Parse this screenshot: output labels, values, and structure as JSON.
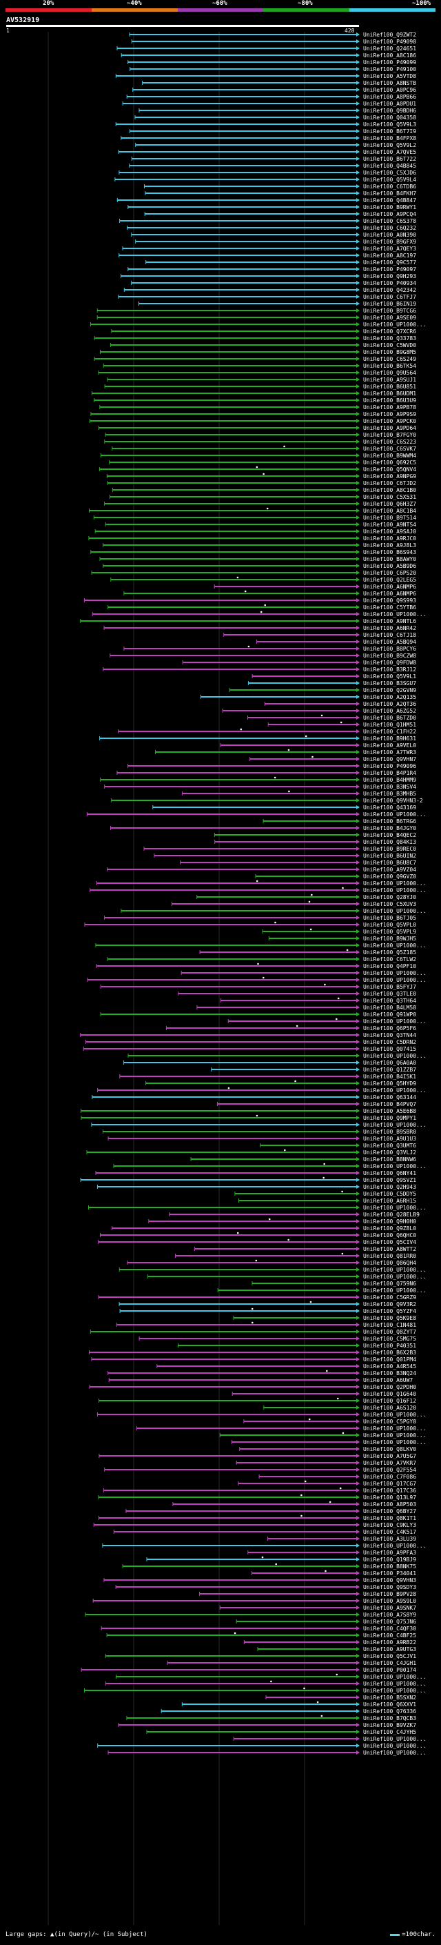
{
  "legend": {
    "labels": [
      "20%",
      "~40%",
      "~60%",
      "~80%",
      "~100%"
    ],
    "colors": [
      "#e0202a",
      "#e07a16",
      "#9a3bb0",
      "#20a320",
      "#3ec9e6"
    ]
  },
  "query": {
    "id": "AV532919",
    "start": "1",
    "end": "428"
  },
  "footer": {
    "left": "Large gaps: ▲(in Query)/~ (in Subject)",
    "right": "=100char."
  },
  "chart_data": {
    "type": "alignment-overview",
    "query_length": 428,
    "hits": [
      "UniRef100_Q9ZWT2",
      "UniRef100_P49098",
      "UniRef100_Q24651",
      "UniRef100_A8C186",
      "UniRef100_P49099",
      "UniRef100_P49100",
      "UniRef100_A5VTD8",
      "UniRef100_A8NSTB",
      "UniRef100_A0PC96",
      "UniRef100_A8PB66",
      "UniRef100_A0PDU1",
      "UniRef100_Q9BDH6",
      "UniRef100_Q04358",
      "UniRef100_Q5V9L3",
      "UniRef100_B6T7I9",
      "UniRef100_B4FPX8",
      "UniRef100_Q5V9L2",
      "UniRef100_A7QVE5",
      "UniRef100_B6T722",
      "UniRef100_Q4B845",
      "UniRef100_C5XJD6",
      "UniRef100_Q5V9L4",
      "UniRef100_C6TDB6",
      "UniRef100_B4FKH7",
      "UniRef100_Q4B847",
      "UniRef100_B9RWY1",
      "UniRef100_A9PCQ4",
      "UniRef100_C6S378",
      "UniRef100_C6Q232",
      "UniRef100_A0N390",
      "UniRef100_B9GFX9",
      "UniRef100_A7QEY3",
      "UniRef100_A8C197",
      "UniRef100_Q9C577",
      "UniRef100_P49097",
      "UniRef100_Q9H293",
      "UniRef100_P40934",
      "UniRef100_Q42342",
      "UniRef100_C6TFJ7",
      "UniRef100_B6IN19",
      "UniRef100_B9TCG6",
      "UniRef100_A9SE09",
      "UniRef100_UP1000...",
      "UniRef100_Q7XCR6",
      "UniRef100_Q33783",
      "UniRef100_C5WVD0",
      "UniRef100_B9G8M5",
      "UniRef100_C6S249",
      "UniRef100_B6TK54",
      "UniRef100_Q9U564",
      "UniRef100_A9SUJ1",
      "UniRef100_B6U851",
      "UniRef100_B6UDM1",
      "UniRef100_B6U3U9",
      "UniRef100_A9PB78",
      "UniRef100_A9P9S9",
      "UniRef100_A9PCK0",
      "UniRef100_A9PD64",
      "UniRef100_B7FGY0",
      "UniRef100_C6S223",
      "UniRef100_C6SVK7",
      "UniRef100_B9WWM4",
      "UniRef100_Q692C5",
      "UniRef100_Q5QNV4",
      "UniRef100_A9NPG9",
      "UniRef100_C6TJD2",
      "UniRef100_A8C1B0",
      "UniRef100_C5X531",
      "UniRef100_Q6H3Z7",
      "UniRef100_A8C1B4",
      "UniRef100_B9T514",
      "UniRef100_A9NTS4",
      "UniRef100_A9SAJ0",
      "UniRef100_A9RJC0",
      "UniRef100_A9J8L3",
      "UniRef100_B6S943",
      "UniRef100_B8AWY0",
      "UniRef100_A5B9D6",
      "UniRef100_C6PS20",
      "UniRef100_Q2LEG5",
      "UniRef100_A6NMP6",
      "UniRef100_A6NMP6",
      "UniRef100_Q9S993",
      "UniRef100_C5YTB6",
      "UniRef100_UP1000...",
      "UniRef100_A9NTL6",
      "UniRef100_A6NR42",
      "UniRef100_C6TJ18",
      "UniRef100_A5BQ94",
      "UniRef100_B8PCY6",
      "UniRef100_B9CZW8",
      "UniRef100_Q9FDW8",
      "UniRef100_B3RJ12",
      "UniRef100_Q5V9L1",
      "UniRef100_B3SGU7",
      "UniRef100_Q2GVN9",
      "UniRef100_A2Q135",
      "UniRef100_A2QT36",
      "UniRef100_A6ZG52",
      "UniRef100_B6TZD0",
      "UniRef100_Q1HM51",
      "UniRef100_C1FH22",
      "UniRef100_B9H631",
      "UniRef100_A9VEL0",
      "UniRef100_A7TWR3",
      "UniRef100_Q9VHN7",
      "UniRef100_P49096",
      "UniRef100_B4P1R4",
      "UniRef100_B4HMM9",
      "UniRef100_B3NSV4",
      "UniRef100_B3MHB5",
      "UniRef100_Q9VHN3-2",
      "UniRef100_Q43169",
      "UniRef100_UP1000...",
      "UniRef100_B6TRG6",
      "UniRef100_B4JGY0",
      "UniRef100_B4QEC2",
      "UniRef100_Q84KI3",
      "UniRef100_B9REC0",
      "UniRef100_B6UIN2",
      "UniRef100_B6U8C7",
      "UniRef100_A9VZ04",
      "UniRef100_Q9GVZ0",
      "UniRef100_UP1000...",
      "UniRef100_UP1000...",
      "UniRef100_Q28YJ0",
      "UniRef100_C5XUV3",
      "UniRef100_UP1000...",
      "UniRef100_B6TJ05",
      "UniRef100_Q5VPL0",
      "UniRef100_Q5VPL9",
      "UniRef100_B9WJH5",
      "UniRef100_UP1000...",
      "UniRef100_Q5Z185",
      "UniRef100_C6TLW2",
      "UniRef100_Q4PF10",
      "UniRef100_UP1000...",
      "UniRef100_UP1000...",
      "UniRef100_B5FYJ7",
      "UniRef100_Q3TLE0",
      "UniRef100_Q3TH64",
      "UniRef100_B4LM58",
      "UniRef100_Q91WP0",
      "UniRef100_UP1000...",
      "UniRef100_Q6P5F6",
      "UniRef100_Q3TN44",
      "UniRef100_C5DRN2",
      "UniRef100_Q07415",
      "UniRef100_UP1000...",
      "UniRef100_Q6A0A0",
      "UniRef100_Q1ZZB7",
      "UniRef100_B4I5K1",
      "UniRef100_Q5HYD9",
      "UniRef100_UP1000...",
      "UniRef100_Q63144",
      "UniRef100_B4PVQ7",
      "UniRef100_A5E6B8",
      "UniRef100_Q9MPY1",
      "UniRef100_UP1000...",
      "UniRef100_B9SBR0",
      "UniRef100_A9U1U3",
      "UniRef100_Q3UMT6",
      "UniRef100_Q3VLJ2",
      "UniRef100_B8NNW6",
      "UniRef100_UP1000...",
      "UniRef100_Q6NY41",
      "UniRef100_Q9SVZ1",
      "UniRef100_Q2H943",
      "UniRef100_C5DDY5",
      "UniRef100_A6RH15",
      "UniRef100_UP1000...",
      "UniRef100_Q28ELB9",
      "UniRef100_Q9H0H0",
      "UniRef100_Q9Z8L0",
      "UniRef100_Q6QHC0",
      "UniRef100_Q5CIV4",
      "UniRef100_A8WTT2",
      "UniRef100_Q81RR0",
      "UniRef100_Q86QH4",
      "UniRef100_UP1000...",
      "UniRef100_UP1000...",
      "UniRef100_Q759N6",
      "UniRef100_UP1000...",
      "UniRef100_C5GRZ9",
      "UniRef100_Q9V3R2",
      "UniRef100_Q5YZF4",
      "UniRef100_Q5K9E8",
      "UniRef100_C1N481",
      "UniRef100_Q8ZYT7",
      "UniRef100_C5MG75",
      "UniRef100_P40351",
      "UniRef100_B6X2B3",
      "UniRef100_Q01PM4",
      "UniRef100_A4R545",
      "UniRef100_B3NQ24",
      "UniRef100_A6UW7",
      "UniRef100_Q2PDH0",
      "UniRef100_Q1G640",
      "UniRef100_Q16F12",
      "UniRef100_A6S120",
      "UniRef100_UP1000...",
      "UniRef100_C5PGY8",
      "UniRef100_UP1000...",
      "UniRef100_UP1000...",
      "UniRef100_UP1000...",
      "UniRef100_Q8LKV0",
      "UniRef100_A7U5G7",
      "UniRef100_A7VKR7",
      "UniRef100_Q2F554",
      "UniRef100_C7F086",
      "UniRef100_Q17CG7",
      "UniRef100_Q17C36",
      "UniRef100_Q13L97",
      "UniRef100_A8P503",
      "UniRef100_Q6BY27",
      "UniRef100_Q8K1T1",
      "UniRef100_C9KLY3",
      "UniRef100_C4K517",
      "UniRef100_A3LU39",
      "UniRef100_UP1000...",
      "UniRef100_A9PFA3",
      "UniRef100_Q19BJ9",
      "UniRef100_B8NK75",
      "UniRef100_P34041",
      "UniRef100_Q9VHN3",
      "UniRef100_Q9SDY3",
      "UniRef100_B9PV28",
      "UniRef100_A9S9L0",
      "UniRef100_A9SNK7",
      "UniRef100_A7S8Y9",
      "UniRef100_Q75JN6",
      "UniRef100_C4QF30",
      "UniRef100_C4BF25",
      "UniRef100_A9RB22",
      "UniRef100_A9UTG3",
      "UniRef100_Q5CJV1",
      "UniRef100_C4JGH1",
      "UniRef100_P00174",
      "UniRef100_UP1000...",
      "UniRef100_UP1000...",
      "UniRef100_UP1000...",
      "UniRef100_B5SXN2",
      "UniRef100_Q6XXV1",
      "UniRef100_Q76336",
      "UniRef100_B7QCB3",
      "UniRef100_B9VZK7",
      "UniRef100_C4JYH5",
      "UniRef100_UP1000...",
      "UniRef100_UP1000...",
      "UniRef100_UP1000..."
    ]
  }
}
